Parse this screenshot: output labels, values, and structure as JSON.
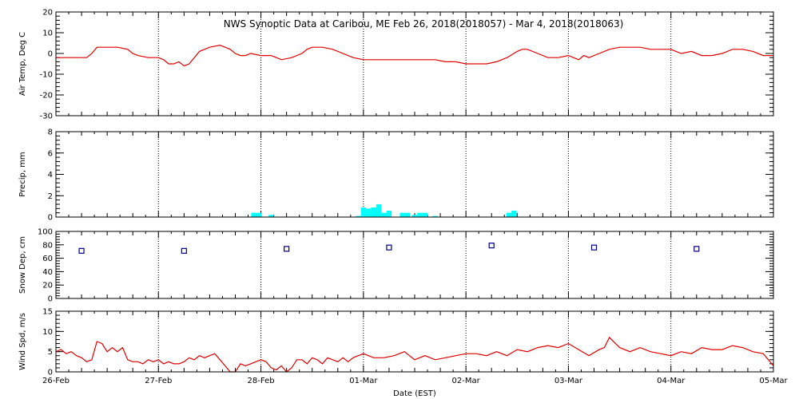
{
  "title": "NWS Synoptic Data at Caribou, ME   Feb 26, 2018(2018057) - Mar  4, 2018(2018063)",
  "xlabel": "Date (EST)",
  "x_tick_labels": [
    "26-Feb",
    "27-Feb",
    "28-Feb",
    "01-Mar",
    "02-Mar",
    "03-Mar",
    "04-Mar",
    "05-Mar"
  ],
  "colors": {
    "temp": "#e00000",
    "precip": "#00ffff",
    "snow": "#00008b",
    "wind": "#e00000",
    "axes": "#000000"
  },
  "chart_data": [
    {
      "type": "line",
      "ylabel": "Air Temp, Deg C",
      "ylim": [
        -30,
        20
      ],
      "yticks": [
        -30,
        -20,
        -10,
        0,
        10,
        20
      ],
      "xlim": [
        0,
        7
      ],
      "grid": "vertical dotted",
      "series": [
        {
          "x": [
            0,
            0.2,
            0.25,
            0.3,
            0.35,
            0.4,
            0.5,
            0.6,
            0.7,
            0.75,
            0.8,
            0.9,
            1.0,
            1.05,
            1.1,
            1.15,
            1.2,
            1.25,
            1.3,
            1.35,
            1.4,
            1.5,
            1.6,
            1.65,
            1.7,
            1.75,
            1.8,
            1.85,
            1.9,
            2.0,
            2.05,
            2.1,
            2.15,
            2.2,
            2.3,
            2.4,
            2.45,
            2.5,
            2.55,
            2.6,
            2.7,
            2.8,
            2.9,
            3.0,
            3.1,
            3.2,
            3.3,
            3.4,
            3.5,
            3.6,
            3.7,
            3.8,
            3.9,
            4.0,
            4.1,
            4.2,
            4.3,
            4.4,
            4.5,
            4.55,
            4.6,
            4.7,
            4.8,
            4.9,
            5.0,
            5.05,
            5.1,
            5.15,
            5.2,
            5.3,
            5.4,
            5.5,
            5.6,
            5.7,
            5.8,
            5.9,
            6.0,
            6.05,
            6.1,
            6.2,
            6.3,
            6.4,
            6.5,
            6.6,
            6.7,
            6.8,
            6.9,
            7.0
          ],
          "y": [
            -2,
            -2,
            -2,
            -2,
            0,
            3,
            3,
            3,
            2,
            0,
            -1,
            -2,
            -2,
            -3,
            -5,
            -5,
            -4,
            -6,
            -5,
            -2,
            1,
            3,
            4,
            3,
            2,
            0,
            -1,
            -1,
            0,
            -1,
            -1,
            -1,
            -2,
            -3,
            -2,
            0,
            2,
            3,
            3,
            3,
            2,
            0,
            -2,
            -3,
            -3,
            -3,
            -3,
            -3,
            -3,
            -3,
            -3,
            -4,
            -4,
            -5,
            -5,
            -5,
            -4,
            -2,
            1,
            2,
            2,
            0,
            -2,
            -2,
            -1,
            -2,
            -3,
            -1,
            -2,
            0,
            2,
            3,
            3,
            3,
            2,
            2,
            2,
            1,
            0,
            1,
            -1,
            -1,
            0,
            2,
            2,
            1,
            -1,
            -1
          ]
        }
      ]
    },
    {
      "type": "bar",
      "ylabel": "Precip, mm",
      "ylim": [
        0,
        8
      ],
      "yticks": [
        0,
        2,
        4,
        6,
        8
      ],
      "xlim": [
        0,
        7
      ],
      "grid": "vertical dotted",
      "series": [
        {
          "x": [
            1.93,
            1.98,
            2.1,
            2.95,
            3.0,
            3.05,
            3.1,
            3.15,
            3.2,
            3.25,
            3.38,
            3.43,
            3.5,
            3.55,
            3.6,
            3.7,
            4.42,
            4.47
          ],
          "y": [
            0.4,
            0.4,
            0.2,
            0.1,
            0.9,
            0.8,
            0.9,
            1.2,
            0.4,
            0.6,
            0.4,
            0.4,
            0.2,
            0.4,
            0.4,
            0.1,
            0.4,
            0.6
          ]
        }
      ]
    },
    {
      "type": "scatter",
      "ylabel": "Snow Dep, cm",
      "ylim": [
        0,
        100
      ],
      "yticks": [
        0,
        20,
        40,
        60,
        80,
        100
      ],
      "xlim": [
        0,
        7
      ],
      "grid": "vertical dotted",
      "series": [
        {
          "x": [
            0.25,
            1.25,
            2.25,
            3.25,
            4.25,
            5.25,
            6.25
          ],
          "y": [
            71,
            71,
            74,
            76,
            79,
            76,
            74
          ]
        }
      ]
    },
    {
      "type": "line",
      "ylabel": "Wind Spd, m/s",
      "ylim": [
        0,
        15
      ],
      "yticks": [
        0,
        5,
        10,
        15
      ],
      "xlim": [
        0,
        7
      ],
      "grid": "vertical dotted",
      "series": [
        {
          "x": [
            0,
            0.05,
            0.1,
            0.15,
            0.2,
            0.25,
            0.3,
            0.35,
            0.4,
            0.45,
            0.5,
            0.55,
            0.6,
            0.65,
            0.7,
            0.75,
            0.8,
            0.85,
            0.9,
            0.95,
            1.0,
            1.05,
            1.1,
            1.15,
            1.2,
            1.25,
            1.3,
            1.35,
            1.4,
            1.45,
            1.5,
            1.55,
            1.6,
            1.65,
            1.7,
            1.75,
            1.8,
            1.85,
            1.9,
            1.95,
            2.0,
            2.05,
            2.1,
            2.15,
            2.2,
            2.25,
            2.3,
            2.35,
            2.4,
            2.45,
            2.5,
            2.55,
            2.6,
            2.65,
            2.7,
            2.75,
            2.8,
            2.85,
            2.9,
            2.95,
            3.0,
            3.1,
            3.2,
            3.3,
            3.4,
            3.5,
            3.6,
            3.7,
            3.8,
            3.9,
            4.0,
            4.1,
            4.2,
            4.3,
            4.4,
            4.5,
            4.6,
            4.7,
            4.8,
            4.9,
            5.0,
            5.1,
            5.2,
            5.3,
            5.35,
            5.4,
            5.5,
            5.6,
            5.7,
            5.8,
            5.9,
            6.0,
            6.1,
            6.2,
            6.3,
            6.4,
            6.5,
            6.6,
            6.7,
            6.8,
            6.9,
            6.95,
            7.0
          ],
          "y": [
            5,
            5.5,
            4.5,
            5,
            4,
            3.5,
            2.5,
            3,
            7.5,
            7,
            5,
            6,
            5,
            6,
            3,
            2.5,
            2.5,
            2,
            3,
            2.5,
            3,
            2,
            2.5,
            2,
            2,
            2.5,
            3.5,
            3,
            4,
            3.5,
            4,
            4.5,
            3,
            1.5,
            0,
            0,
            2,
            1.5,
            2,
            2.5,
            3,
            2.5,
            1,
            0.5,
            1.5,
            0,
            1,
            3,
            3,
            2,
            3.5,
            3,
            2,
            3.5,
            3,
            2.5,
            3.5,
            2.5,
            3.5,
            4,
            4.5,
            3.5,
            3.5,
            4,
            5,
            3,
            4,
            3,
            3.5,
            4,
            4.5,
            4.5,
            4,
            5,
            4,
            5.5,
            5,
            6,
            6.5,
            6,
            7,
            5.5,
            4,
            5.5,
            6,
            8.5,
            6,
            5,
            6,
            5,
            4.5,
            4,
            5,
            4.5,
            6,
            5.5,
            5.5,
            6.5,
            6,
            5,
            4.5,
            3,
            1.5
          ]
        }
      ]
    }
  ]
}
